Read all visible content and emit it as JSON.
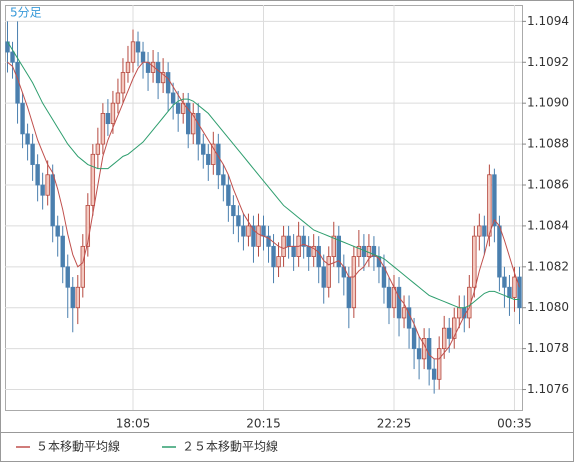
{
  "chart_data": {
    "type": "candlestick",
    "title": "5分足",
    "up_color": "#b5483e",
    "up_fill": "#f3c9c0",
    "down_color": "#4a7fae",
    "grid": true,
    "ylim": [
      1.1075,
      1.10948
    ],
    "yticks": [
      1.1076,
      1.1078,
      {
        "value": 1.108,
        "label": "1.1080"
      },
      1.1082,
      1.1084,
      1.1086,
      1.1088,
      {
        "value": 1.109,
        "label": "1.1090"
      },
      1.1092,
      1.1094
    ],
    "categories": [
      null,
      null,
      null,
      null,
      null,
      null,
      null,
      null,
      null,
      null,
      null,
      null,
      null,
      null,
      null,
      null,
      null,
      null,
      null,
      null,
      null,
      null,
      null,
      null,
      null,
      "18:05",
      null,
      null,
      null,
      null,
      null,
      null,
      null,
      null,
      null,
      null,
      null,
      null,
      null,
      null,
      null,
      null,
      null,
      null,
      null,
      null,
      null,
      null,
      null,
      null,
      null,
      "20:15",
      null,
      null,
      null,
      null,
      null,
      null,
      null,
      null,
      null,
      null,
      null,
      null,
      null,
      null,
      null,
      null,
      null,
      null,
      null,
      null,
      null,
      null,
      null,
      null,
      null,
      "22:25",
      null,
      null,
      null,
      null,
      null,
      null,
      null,
      null,
      null,
      null,
      null,
      null,
      null,
      null,
      null,
      null,
      null,
      null,
      null,
      null,
      null,
      null,
      null,
      "00:35",
      null
    ],
    "open": [
      1.1093,
      1.10925,
      1.1092,
      1.109,
      1.10885,
      1.1088,
      1.1087,
      1.1086,
      1.10855,
      1.10865,
      1.1084,
      1.10835,
      1.1082,
      1.1081,
      1.108,
      1.1081,
      1.1083,
      1.1085,
      1.10875,
      1.1088,
      1.10895,
      1.1089,
      1.109,
      1.10905,
      1.10915,
      1.1092,
      1.1093,
      1.10925,
      1.1092,
      1.10915,
      1.1092,
      1.1091,
      1.10915,
      1.10905,
      1.109,
      1.10895,
      1.109,
      1.10885,
      1.10895,
      1.1088,
      1.10875,
      1.1087,
      1.1088,
      1.10865,
      1.1086,
      1.1085,
      1.10845,
      1.1084,
      1.10835,
      1.1084,
      1.1083,
      1.1084,
      1.10835,
      1.1083,
      1.1082,
      1.10825,
      1.10835,
      1.1083,
      1.10825,
      1.10835,
      1.1083,
      1.10825,
      1.1083,
      1.1082,
      1.1081,
      1.10825,
      1.10835,
      1.1082,
      1.10815,
      1.108,
      1.10825,
      1.1083,
      1.10825,
      1.1083,
      1.10825,
      1.1082,
      1.1081,
      1.108,
      1.1081,
      1.10795,
      1.108,
      1.1079,
      1.1078,
      1.10775,
      1.10785,
      1.1077,
      1.10765,
      1.1078,
      1.1079,
      1.10785,
      1.10795,
      1.108,
      1.10795,
      1.1081,
      1.10835,
      1.1084,
      1.10835,
      1.10865,
      1.1084,
      1.10815,
      1.1081,
      1.10805,
      1.10815
    ],
    "high": [
      1.1094,
      1.1093,
      1.1094,
      1.10905,
      1.1089,
      1.10885,
      1.10875,
      1.10866,
      1.10872,
      1.1087,
      1.10845,
      1.1084,
      1.10826,
      1.10815,
      1.10816,
      1.10836,
      1.10856,
      1.1088,
      1.10888,
      1.109,
      1.10902,
      1.10906,
      1.10912,
      1.10922,
      1.10928,
      1.10936,
      1.10935,
      1.1093,
      1.10925,
      1.10926,
      1.10925,
      1.10922,
      1.1092,
      1.1091,
      1.10906,
      1.10905,
      1.10905,
      1.109,
      1.109,
      1.10885,
      1.1088,
      1.10886,
      1.10885,
      1.1087,
      1.10865,
      1.10855,
      1.1085,
      1.10846,
      1.10846,
      1.10845,
      1.10846,
      1.10845,
      1.1084,
      1.10836,
      1.10832,
      1.1084,
      1.1084,
      1.10836,
      1.10842,
      1.1084,
      1.10835,
      1.10836,
      1.10835,
      1.10826,
      1.1083,
      1.10842,
      1.1084,
      1.10826,
      1.1082,
      1.1083,
      1.10838,
      1.10836,
      1.10836,
      1.10835,
      1.1083,
      1.10826,
      1.10815,
      1.10816,
      1.10815,
      1.10806,
      1.10806,
      1.10795,
      1.10786,
      1.1079,
      1.1079,
      1.10775,
      1.10786,
      1.10796,
      1.10795,
      1.108,
      1.10806,
      1.10806,
      1.10816,
      1.1084,
      1.10846,
      1.10845,
      1.1087,
      1.10868,
      1.10845,
      1.1082,
      1.10816,
      1.1082,
      1.1082
    ],
    "low": [
      1.10915,
      1.10912,
      1.1089,
      1.10878,
      1.10872,
      1.10862,
      1.10852,
      1.10848,
      1.1085,
      1.10832,
      1.10825,
      1.10812,
      1.10795,
      1.10788,
      1.10792,
      1.10805,
      1.10825,
      1.10845,
      1.10868,
      1.10875,
      1.10884,
      1.10885,
      1.10895,
      1.109,
      1.1091,
      1.10915,
      1.10918,
      1.10912,
      1.10906,
      1.1091,
      1.10902,
      1.10905,
      1.10896,
      1.10892,
      1.10886,
      1.1089,
      1.10878,
      1.1088,
      1.10872,
      1.10868,
      1.10862,
      1.10865,
      1.10858,
      1.10852,
      1.10842,
      1.10836,
      1.10832,
      1.10828,
      1.1083,
      1.10822,
      1.10825,
      1.10828,
      1.10822,
      1.10812,
      1.10815,
      1.1082,
      1.10824,
      1.10818,
      1.1082,
      1.10824,
      1.10818,
      1.1082,
      1.10812,
      1.10802,
      1.10805,
      1.1082,
      1.10812,
      1.10806,
      1.1079,
      1.10795,
      1.1082,
      1.10818,
      1.1082,
      1.10818,
      1.10812,
      1.10802,
      1.10792,
      1.10795,
      1.10786,
      1.1079,
      1.1078,
      1.1077,
      1.10765,
      1.1077,
      1.10762,
      1.10758,
      1.1076,
      1.10775,
      1.10778,
      1.1078,
      1.1079,
      1.10788,
      1.1079,
      1.10805,
      1.10828,
      1.10826,
      1.1083,
      1.10832,
      1.10808,
      1.108,
      1.10796,
      1.10798,
      1.10792
    ],
    "close": [
      1.10925,
      1.1092,
      1.109,
      1.10885,
      1.1088,
      1.1087,
      1.1086,
      1.10855,
      1.10865,
      1.1084,
      1.10835,
      1.1082,
      1.1081,
      1.108,
      1.1081,
      1.1083,
      1.1085,
      1.10875,
      1.1088,
      1.10895,
      1.1089,
      1.109,
      1.10905,
      1.10915,
      1.1092,
      1.1093,
      1.10925,
      1.1092,
      1.10915,
      1.1092,
      1.1091,
      1.10915,
      1.10905,
      1.109,
      1.10895,
      1.109,
      1.10885,
      1.10895,
      1.1088,
      1.10875,
      1.1087,
      1.1088,
      1.10865,
      1.1086,
      1.1085,
      1.10845,
      1.1084,
      1.10835,
      1.1084,
      1.1083,
      1.1084,
      1.10835,
      1.1083,
      1.1082,
      1.10825,
      1.10835,
      1.1083,
      1.10825,
      1.10835,
      1.1083,
      1.10825,
      1.1083,
      1.1082,
      1.1081,
      1.10825,
      1.10835,
      1.1082,
      1.10815,
      1.108,
      1.10825,
      1.1083,
      1.10825,
      1.1083,
      1.10825,
      1.1082,
      1.1081,
      1.108,
      1.1081,
      1.10795,
      1.108,
      1.1079,
      1.1078,
      1.10775,
      1.10785,
      1.1077,
      1.10765,
      1.1078,
      1.1079,
      1.10785,
      1.10795,
      1.108,
      1.10795,
      1.1081,
      1.10835,
      1.1084,
      1.10835,
      1.10865,
      1.1084,
      1.10815,
      1.1081,
      1.10805,
      1.10815,
      1.108
    ],
    "series": [
      {
        "name": "５本移動平均線",
        "color": "#c0504d",
        "values": [
          1.1092,
          1.10918,
          1.10912,
          1.10905,
          1.10898,
          1.1089,
          1.10882,
          1.10876,
          1.1087,
          1.10866,
          1.10858,
          1.10848,
          1.10836,
          1.10826,
          1.1082,
          1.10822,
          1.10832,
          1.10846,
          1.1086,
          1.10874,
          1.10882,
          1.10888,
          1.10894,
          1.109,
          1.10906,
          1.10912,
          1.10917,
          1.1092,
          1.1092,
          1.10918,
          1.10916,
          1.10914,
          1.10912,
          1.10908,
          1.10904,
          1.109,
          1.10897,
          1.10894,
          1.1089,
          1.10886,
          1.10882,
          1.10878,
          1.10874,
          1.1087,
          1.10865,
          1.10858,
          1.10852,
          1.10846,
          1.10842,
          1.10838,
          1.10836,
          1.10835,
          1.10834,
          1.10832,
          1.1083,
          1.10829,
          1.1083,
          1.1083,
          1.1083,
          1.10831,
          1.1083,
          1.10829,
          1.10827,
          1.10823,
          1.10821,
          1.10822,
          1.10823,
          1.1082,
          1.10815,
          1.10815,
          1.10818,
          1.1082,
          1.10824,
          1.10826,
          1.10824,
          1.1082,
          1.10815,
          1.1081,
          1.10805,
          1.10802,
          1.10797,
          1.10792,
          1.10786,
          1.10782,
          1.10777,
          1.10775,
          1.10775,
          1.10778,
          1.10781,
          1.10786,
          1.10791,
          1.10796,
          1.108,
          1.10808,
          1.10818,
          1.10826,
          1.10836,
          1.10843,
          1.1084,
          1.10833,
          1.10825,
          1.10817,
          1.1081
        ]
      },
      {
        "name": "２５本移動平均線",
        "color": "#2e9e6e",
        "values": [
          1.1093,
          1.10926,
          1.10922,
          1.10918,
          1.10914,
          1.1091,
          1.10905,
          1.109,
          1.10896,
          1.10892,
          1.10888,
          1.10884,
          1.1088,
          1.10877,
          1.10874,
          1.10872,
          1.1087,
          1.10869,
          1.10868,
          1.10868,
          1.10868,
          1.1087,
          1.10872,
          1.10874,
          1.10875,
          1.10877,
          1.10879,
          1.10881,
          1.10884,
          1.10887,
          1.1089,
          1.10893,
          1.10896,
          1.10899,
          1.10901,
          1.10902,
          1.10902,
          1.10901,
          1.10899,
          1.10897,
          1.10895,
          1.10892,
          1.10889,
          1.10886,
          1.10883,
          1.1088,
          1.10877,
          1.10874,
          1.10871,
          1.10868,
          1.10865,
          1.10862,
          1.10859,
          1.10856,
          1.10853,
          1.1085,
          1.10848,
          1.10846,
          1.10844,
          1.10842,
          1.1084,
          1.10838,
          1.10837,
          1.10836,
          1.10835,
          1.10834,
          1.10833,
          1.10832,
          1.10831,
          1.1083,
          1.10829,
          1.10828,
          1.10827,
          1.10826,
          1.10825,
          1.10824,
          1.10822,
          1.1082,
          1.10818,
          1.10816,
          1.10814,
          1.10812,
          1.1081,
          1.10808,
          1.10806,
          1.10805,
          1.10804,
          1.10803,
          1.10802,
          1.10801,
          1.108,
          1.108,
          1.10801,
          1.10803,
          1.10805,
          1.10807,
          1.10808,
          1.10808,
          1.10807,
          1.10806,
          1.10805,
          1.10804,
          1.10804
        ]
      }
    ]
  }
}
